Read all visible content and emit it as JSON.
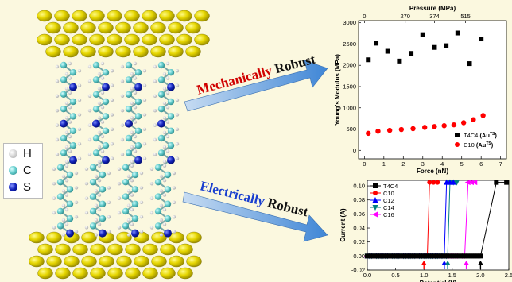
{
  "legend": {
    "items": [
      {
        "symbol": "H",
        "color": "#c8c8c8"
      },
      {
        "symbol": "C",
        "color": "#5ec8c8"
      },
      {
        "symbol": "S",
        "color": "#1020b8"
      }
    ]
  },
  "arrows": {
    "mechanical": {
      "word1": "Mechanically",
      "word2": " Robust"
    },
    "electrical": {
      "word1": "Electrically",
      "word2": " Robust"
    }
  },
  "colors": {
    "background": "#fbf8df",
    "gold": "#d4c400",
    "arrow": "#4a8fd8",
    "red": "#ff0000",
    "magenta": "#ff00ff",
    "blue": "#0000ff",
    "teal": "#008080"
  },
  "chart_data": [
    {
      "type": "scatter",
      "xlabel": "Force (nN)",
      "ylabel": "Young's Modulus (MPa)",
      "top_xlabel": "Pressure (MPa)",
      "top_ticks": [
        {
          "x": 0,
          "label": "0"
        },
        {
          "x": 2.1,
          "label": "270"
        },
        {
          "x": 3.6,
          "label": "374"
        },
        {
          "x": 5.2,
          "label": "515"
        }
      ],
      "xlim": [
        -0.3,
        7.3
      ],
      "ylim": [
        -200,
        3050
      ],
      "xticks": [
        0,
        1,
        2,
        3,
        4,
        5,
        6,
        7
      ],
      "yticks": [
        0,
        500,
        1000,
        1500,
        2000,
        2500,
        3000
      ],
      "legend_position": "bottom-right",
      "series": [
        {
          "name": "T4C4",
          "name_suffix": "(Au",
          "name_sup": "TS",
          "name_close": ")",
          "color": "#000000",
          "marker": "square",
          "x": [
            0.2,
            0.6,
            1.2,
            1.8,
            2.4,
            3.0,
            3.6,
            4.2,
            4.8,
            5.4,
            6.0
          ],
          "y": [
            2130,
            2520,
            2330,
            2100,
            2280,
            2720,
            2420,
            2460,
            2760,
            2040,
            2620
          ]
        },
        {
          "name": "C10",
          "name_suffix": "(Au",
          "name_sup": "TS",
          "name_close": ")",
          "color": "#ff0000",
          "marker": "circle",
          "x": [
            0.2,
            0.7,
            1.3,
            1.9,
            2.5,
            3.1,
            3.6,
            4.1,
            4.6,
            5.1,
            5.6,
            6.1
          ],
          "y": [
            400,
            450,
            470,
            490,
            510,
            540,
            560,
            580,
            600,
            650,
            720,
            820
          ]
        }
      ]
    },
    {
      "type": "line",
      "xlabel": "Potential (V)",
      "ylabel": "Current (A)",
      "xlim": [
        0,
        2.5
      ],
      "ylim": [
        -0.02,
        0.108
      ],
      "xticks": [
        0.0,
        0.5,
        1.0,
        1.5,
        2.0,
        2.5
      ],
      "xtick_labels": [
        "0.0",
        "0.5",
        "1.0",
        "1.5",
        "2.0",
        "2.5"
      ],
      "yticks": [
        -0.02,
        0.0,
        0.02,
        0.04,
        0.06,
        0.08,
        0.1
      ],
      "ytick_labels": [
        "-0.02",
        "0.00",
        "0.02",
        "0.04",
        "0.06",
        "0.08",
        "0.10"
      ],
      "legend_position": "top-left",
      "series": [
        {
          "name": "T4C4",
          "color": "#000000",
          "marker": "square",
          "threshold": 2.0,
          "top_points": [
            2.28,
            2.46
          ]
        },
        {
          "name": "C10",
          "color": "#ff0000",
          "marker": "circle",
          "threshold": 1.06,
          "top_points": [
            1.1,
            1.17,
            1.24
          ]
        },
        {
          "name": "C12",
          "color": "#0000ff",
          "marker": "triangle-up",
          "threshold": 1.36,
          "top_points": [
            1.4,
            1.46,
            1.52
          ]
        },
        {
          "name": "C14",
          "color": "#008080",
          "marker": "triangle-down",
          "threshold": 1.42,
          "top_points": [
            1.46,
            1.52,
            1.58
          ]
        },
        {
          "name": "C16",
          "color": "#ff00ff",
          "marker": "triangle-left",
          "threshold": 1.72,
          "top_points": [
            1.78,
            1.84,
            1.9
          ]
        }
      ],
      "threshold_arrows": [
        1.0,
        1.36,
        1.42,
        1.75,
        2.0
      ]
    }
  ]
}
